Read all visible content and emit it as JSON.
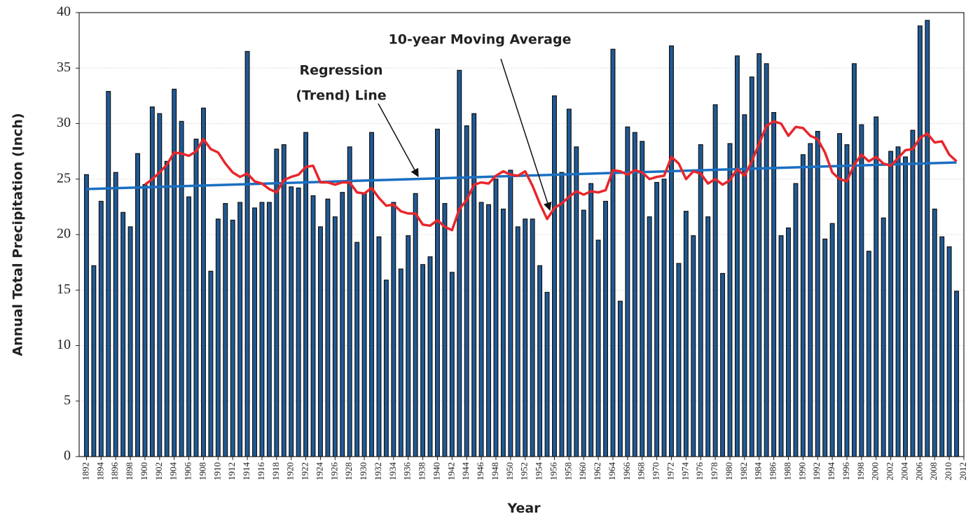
{
  "chart_data": {
    "type": "bar",
    "xlabel": "Year",
    "ylabel": "Annual Total Precipitation (Inch)",
    "x": [
      1892,
      1893,
      1894,
      1895,
      1896,
      1897,
      1898,
      1899,
      1900,
      1901,
      1902,
      1903,
      1904,
      1905,
      1906,
      1907,
      1908,
      1909,
      1910,
      1911,
      1912,
      1913,
      1914,
      1915,
      1916,
      1917,
      1918,
      1919,
      1920,
      1921,
      1922,
      1923,
      1924,
      1925,
      1926,
      1927,
      1928,
      1929,
      1930,
      1931,
      1932,
      1933,
      1934,
      1935,
      1936,
      1937,
      1938,
      1939,
      1940,
      1941,
      1942,
      1943,
      1944,
      1945,
      1946,
      1947,
      1948,
      1949,
      1950,
      1951,
      1952,
      1953,
      1954,
      1955,
      1956,
      1957,
      1958,
      1959,
      1960,
      1961,
      1962,
      1963,
      1964,
      1965,
      1966,
      1967,
      1968,
      1969,
      1970,
      1971,
      1972,
      1973,
      1974,
      1975,
      1976,
      1977,
      1978,
      1979,
      1980,
      1981,
      1982,
      1983,
      1984,
      1985,
      1986,
      1987,
      1988,
      1989,
      1990,
      1991,
      1992,
      1993,
      1994,
      1995,
      1996,
      1997,
      1998,
      1999,
      2000,
      2001,
      2002,
      2003,
      2004,
      2005,
      2006,
      2007,
      2008,
      2009,
      2010,
      2011
    ],
    "series": [
      {
        "type": "bar",
        "color": "#1f5a96",
        "edge": "#111111",
        "values": [
          25.4,
          17.2,
          23.0,
          32.9,
          25.6,
          22.0,
          20.7,
          27.3,
          24.5,
          31.5,
          30.9,
          26.6,
          33.1,
          30.2,
          23.4,
          28.6,
          31.4,
          16.7,
          21.4,
          22.8,
          21.3,
          22.9,
          36.5,
          22.4,
          22.9,
          22.9,
          27.7,
          28.1,
          24.3,
          24.2,
          29.2,
          23.5,
          20.7,
          23.2,
          21.6,
          23.8,
          27.9,
          19.3,
          23.7,
          29.2,
          19.8,
          15.9,
          22.9,
          16.9,
          19.9,
          23.7,
          17.3,
          18.0,
          29.5,
          22.8,
          16.6,
          34.8,
          29.8,
          30.9,
          22.9,
          22.7,
          25.0,
          22.3,
          25.8,
          20.7,
          21.4,
          21.4,
          17.2,
          14.8,
          32.5,
          25.6,
          31.3,
          27.9,
          22.2,
          24.6,
          19.5,
          23.0,
          36.7,
          14.0,
          29.7,
          29.2,
          28.4,
          21.6,
          24.7,
          25.0,
          37.0,
          17.4,
          22.1,
          19.9,
          28.1,
          21.6,
          31.7,
          16.5,
          28.2,
          36.1,
          30.8,
          34.2,
          36.3,
          35.4,
          31.0,
          19.9,
          20.6,
          24.6,
          27.2,
          28.2,
          29.3,
          19.6,
          21.0,
          29.1,
          28.1,
          35.4,
          29.9,
          18.5,
          30.6,
          21.5,
          27.5,
          27.9,
          27.0,
          29.4,
          38.8,
          39.3,
          22.3,
          19.8,
          18.9,
          14.9
        ]
      },
      {
        "type": "line",
        "color": "#1a6fc1",
        "x": [
          1892,
          2011
        ],
        "values": [
          24.1,
          26.5
        ]
      },
      {
        "type": "line",
        "color": "#e8262b",
        "values": [
          null,
          null,
          null,
          null,
          null,
          null,
          null,
          null,
          24.5,
          25.0,
          25.6,
          26.3,
          27.4,
          27.3,
          27.1,
          27.5,
          28.6,
          27.7,
          27.4,
          26.4,
          25.6,
          25.2,
          25.5,
          24.8,
          24.6,
          24.1,
          23.8,
          24.9,
          25.2,
          25.4,
          26.1,
          26.2,
          24.7,
          24.7,
          24.5,
          24.7,
          24.7,
          23.8,
          23.7,
          24.2,
          23.3,
          22.6,
          22.7,
          22.1,
          21.9,
          21.9,
          20.9,
          20.8,
          21.3,
          20.7,
          20.4,
          22.3,
          23.1,
          24.5,
          24.7,
          24.6,
          25.3,
          25.7,
          25.4,
          25.3,
          25.7,
          24.4,
          22.8,
          21.4,
          22.4,
          22.8,
          23.4,
          23.9,
          23.6,
          23.9,
          23.8,
          24.0,
          25.8,
          25.7,
          25.4,
          25.8,
          25.6,
          25.0,
          25.2,
          25.3,
          27.0,
          26.4,
          25.0,
          25.7,
          25.5,
          24.6,
          25.0,
          24.5,
          24.9,
          25.9,
          25.3,
          26.6,
          28.2,
          29.8,
          30.2,
          30.0,
          28.9,
          29.7,
          29.6,
          28.9,
          28.6,
          27.4,
          25.6,
          25.0,
          24.8,
          26.3,
          27.2,
          26.6,
          27.0,
          26.4,
          26.2,
          26.9,
          27.6,
          27.7,
          28.7,
          29.1,
          28.3,
          28.4,
          27.2,
          26.6
        ]
      }
    ],
    "annotations": [
      {
        "text": [
          "Regression",
          "(Trend) Line"
        ]
      },
      {
        "text": "10-year Moving Average"
      }
    ],
    "xlim": [
      1891,
      2012
    ],
    "xticks": [
      1892,
      1894,
      1896,
      1898,
      1900,
      1902,
      1904,
      1906,
      1908,
      1910,
      1912,
      1914,
      1916,
      1918,
      1920,
      1922,
      1924,
      1926,
      1928,
      1930,
      1932,
      1934,
      1936,
      1938,
      1940,
      1942,
      1944,
      1946,
      1948,
      1950,
      1952,
      1954,
      1956,
      1958,
      1960,
      1962,
      1964,
      1966,
      1968,
      1970,
      1972,
      1974,
      1976,
      1978,
      1980,
      1982,
      1984,
      1986,
      1988,
      1990,
      1992,
      1994,
      1996,
      1998,
      2000,
      2002,
      2004,
      2006,
      2008,
      2010,
      2012
    ],
    "ylim": [
      0,
      40
    ],
    "yticks": [
      0,
      5,
      10,
      15,
      20,
      25,
      30,
      35,
      40
    ],
    "grid": true
  }
}
